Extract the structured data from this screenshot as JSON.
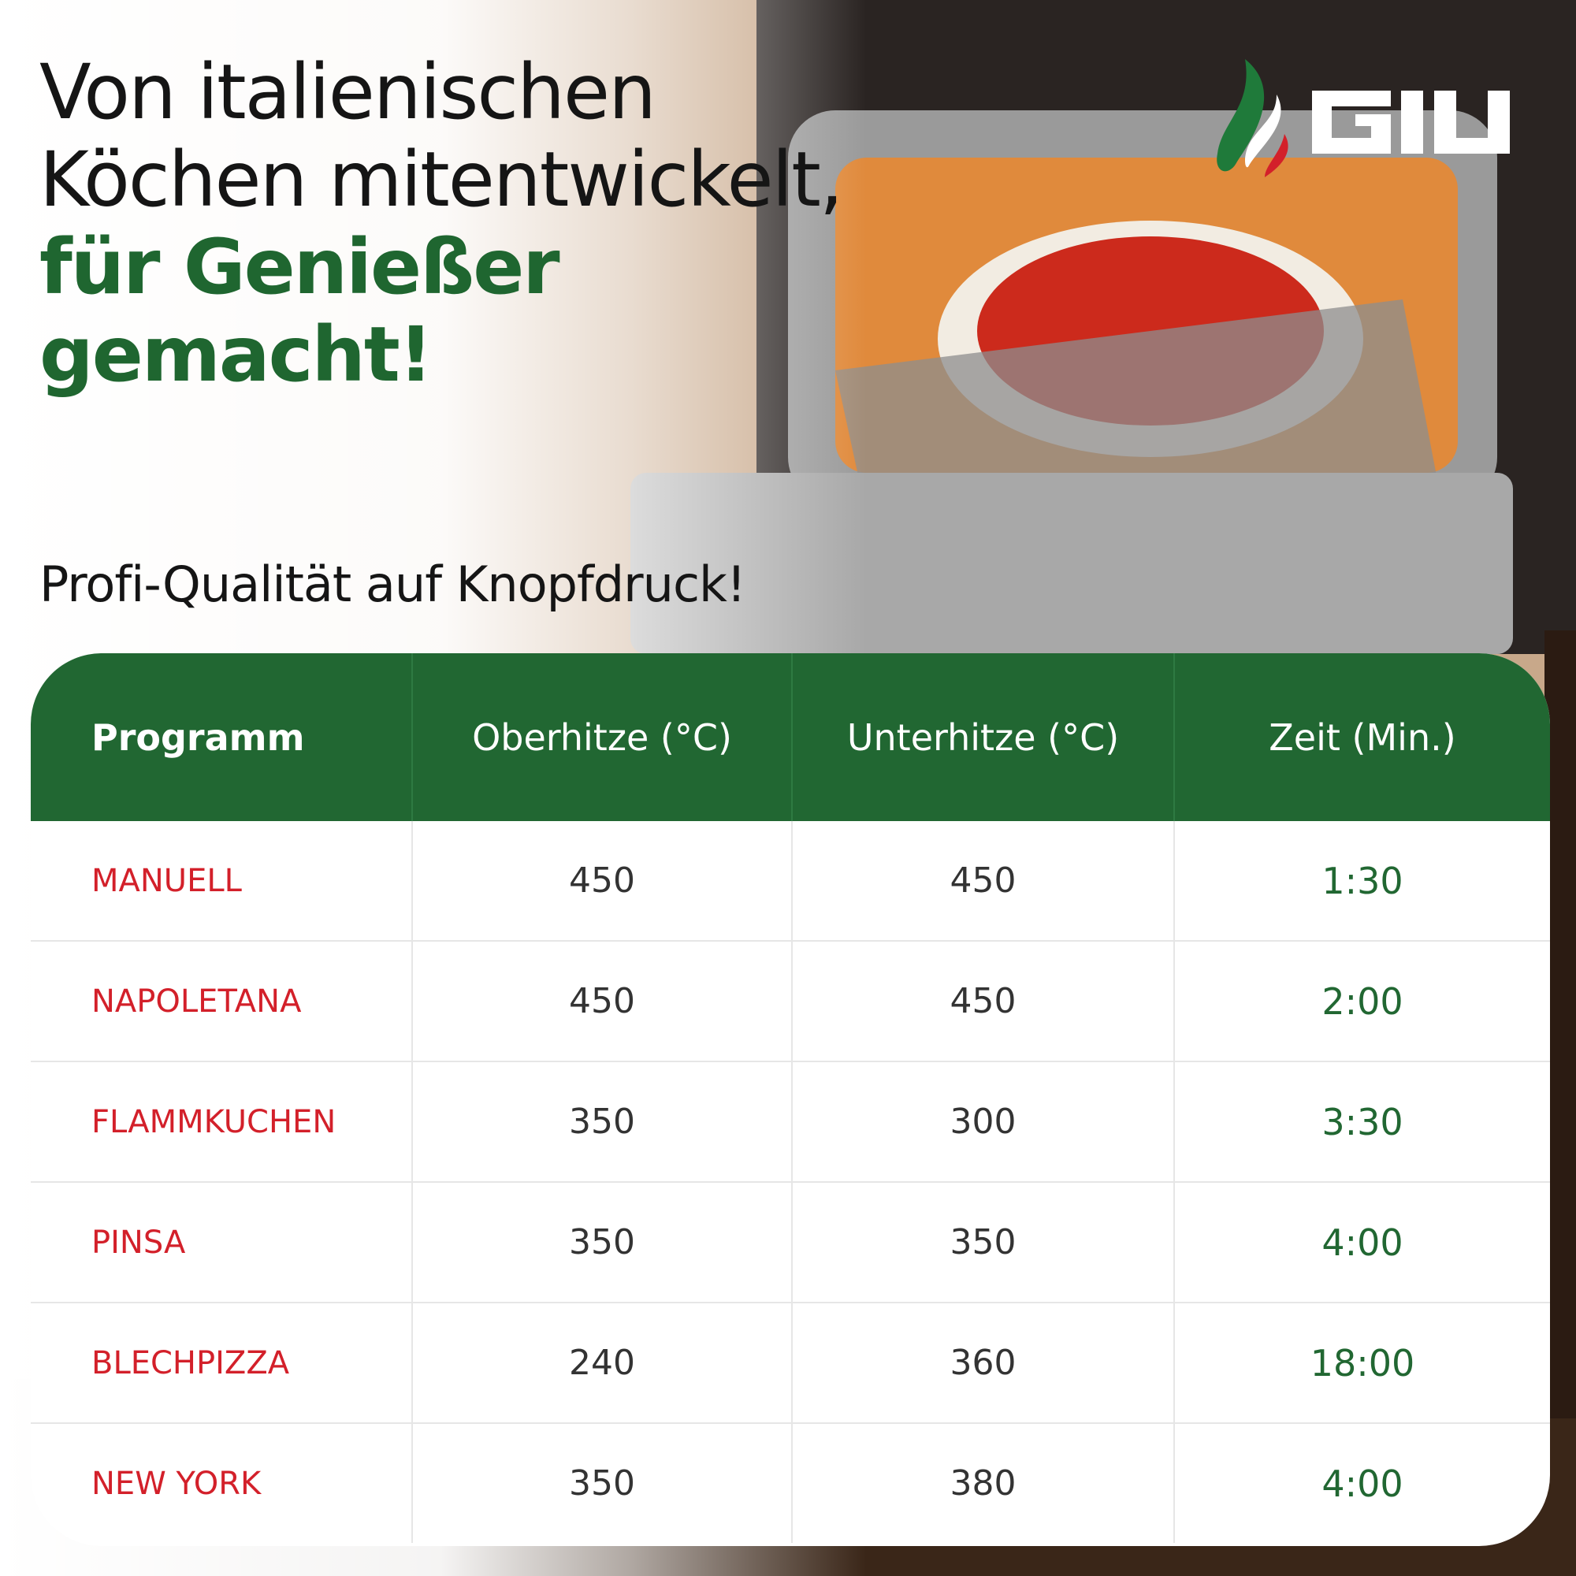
{
  "headline": {
    "line1": "Von italienischen",
    "line2": "Köchen mitentwickelt,",
    "line3": "für Genießer",
    "line4": "gemacht!"
  },
  "subtitle": "Profi-Qualität auf Knopfdruck!",
  "logo": {
    "text": "GIU",
    "colors": [
      "#1f7a3a",
      "#ffffff",
      "#d3202a"
    ]
  },
  "colors": {
    "accent_green": "#216732",
    "program_red": "#d3202a"
  },
  "table": {
    "headers": [
      "Programm",
      "Oberhitze (°C)",
      "Unterhitze (°C)",
      "Zeit (Min.)"
    ],
    "rows": [
      [
        "MANUELL",
        "450",
        "450",
        "1:30"
      ],
      [
        "NAPOLETANA",
        "450",
        "450",
        "2:00"
      ],
      [
        "FLAMMKUCHEN",
        "350",
        "300",
        "3:30"
      ],
      [
        "PINSA",
        "350",
        "350",
        "4:00"
      ],
      [
        "BLECHPIZZA",
        "240",
        "360",
        "18:00"
      ],
      [
        "NEW YORK",
        "350",
        "380",
        "4:00"
      ]
    ]
  }
}
